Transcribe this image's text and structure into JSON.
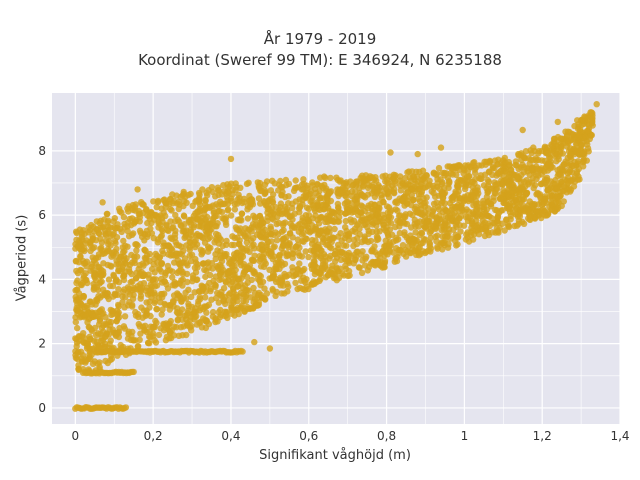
{
  "chart_data": {
    "type": "scatter",
    "title_line1": "År 1979 - 2019",
    "title_line2": "Koordinat (Sweref 99 TM): E 346924, N 6235188",
    "xlabel": "Signifikant våghöjd (m)",
    "ylabel": "Vågperiod (s)",
    "xlim": [
      -0.06,
      1.4
    ],
    "ylim": [
      -0.5,
      9.8
    ],
    "x_ticks": [
      0,
      0.2,
      0.4,
      0.6,
      0.8,
      1,
      1.2,
      1.4
    ],
    "x_tick_labels": [
      "0",
      "0,2",
      "0,4",
      "0,6",
      "0,8",
      "1",
      "1,2",
      "1,4"
    ],
    "y_ticks": [
      0,
      2,
      4,
      6,
      8
    ],
    "y_tick_labels": [
      "0",
      "2",
      "4",
      "6",
      "8"
    ],
    "grid": true,
    "legend": "none",
    "marker_color": "#D4A21C",
    "background_color": "#E5E5EF",
    "grid_color": "#FFFFFF",
    "cloud_envelope": {
      "x": [
        0,
        0.05,
        0.1,
        0.2,
        0.3,
        0.4,
        0.5,
        0.6,
        0.7,
        0.8,
        0.9,
        1.0,
        1.1,
        1.2,
        1.25,
        1.3,
        1.33
      ],
      "lower": [
        1.1,
        1.1,
        1.5,
        2.0,
        2.3,
        2.8,
        3.3,
        3.7,
        4.0,
        4.4,
        4.8,
        5.1,
        5.5,
        5.9,
        6.2,
        7.0,
        8.4
      ],
      "upper": [
        5.5,
        5.8,
        6.2,
        6.5,
        6.8,
        7.0,
        7.1,
        7.2,
        7.2,
        7.3,
        7.4,
        7.6,
        7.8,
        8.2,
        8.5,
        9.0,
        9.3
      ]
    },
    "streaks": [
      {
        "x_from": 0.0,
        "x_to": 0.13,
        "y": 0.0
      },
      {
        "x_from": 0.05,
        "x_to": 0.43,
        "y": 1.75
      },
      {
        "x_from": 0.02,
        "x_to": 0.15,
        "y": 1.1
      }
    ],
    "outliers": [
      {
        "x": 1.34,
        "y": 9.45
      },
      {
        "x": 1.29,
        "y": 8.95
      },
      {
        "x": 1.24,
        "y": 8.9
      },
      {
        "x": 1.15,
        "y": 8.65
      },
      {
        "x": 0.94,
        "y": 8.1
      },
      {
        "x": 0.88,
        "y": 7.9
      },
      {
        "x": 0.81,
        "y": 7.95
      },
      {
        "x": 0.4,
        "y": 7.75
      },
      {
        "x": 0.16,
        "y": 6.8
      },
      {
        "x": 0.07,
        "y": 6.4
      },
      {
        "x": 0.46,
        "y": 2.05
      },
      {
        "x": 0.5,
        "y": 1.85
      }
    ]
  }
}
